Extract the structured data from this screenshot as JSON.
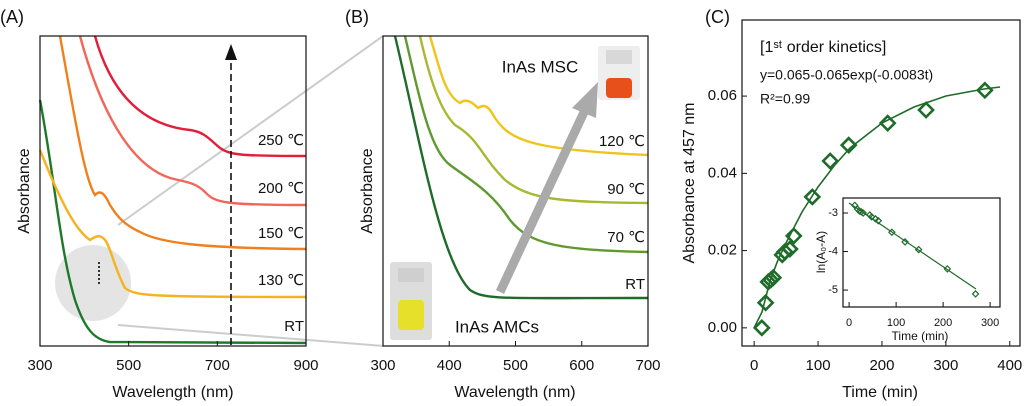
{
  "chart_data": [
    {
      "type": "line",
      "panel_label": "(A)",
      "x_label": "Wavelength (nm)",
      "y_label": "Absorbance",
      "xlim": [
        300,
        900
      ],
      "xticks": [
        300,
        500,
        700,
        900
      ],
      "curve_labels": [
        "250 ℃",
        "200 ℃",
        "150 ℃",
        "130 ℃",
        "RT"
      ]
    },
    {
      "type": "line",
      "panel_label": "(B)",
      "x_label": "Wavelength (nm)",
      "y_label": "Absorbance",
      "xlim": [
        300,
        700
      ],
      "xticks": [
        300,
        400,
        500,
        600,
        700
      ],
      "curve_labels": [
        "120 ℃",
        "90 ℃",
        "70 ℃",
        "RT"
      ],
      "annotations": [
        "InAs MSC",
        "InAs AMCs"
      ]
    },
    {
      "type": "scatter",
      "panel_label": "(C)",
      "x_label": "Time (min)",
      "y_label": "Absorbance at 457 nm",
      "annotations": [
        "[1ˢᵗ order kinetics]",
        "y=0.065-0.065exp(-0.0083t)",
        "R²=0.99"
      ],
      "x": [
        12,
        18,
        22,
        26,
        30,
        44,
        48,
        56,
        62,
        91,
        119,
        148,
        209,
        269,
        361
      ],
      "values": [
        0.0,
        0.0065,
        0.0119,
        0.0124,
        0.013,
        0.0189,
        0.0197,
        0.0204,
        0.0238,
        0.0339,
        0.0432,
        0.0473,
        0.053,
        0.0564,
        0.0615
      ],
      "color": "#1e6b2a",
      "xlim": [
        -19,
        416
      ],
      "ylim": [
        -0.0047,
        0.0797
      ],
      "xticks": [
        0,
        100,
        200,
        300,
        400
      ],
      "yticks": [
        {
          "value": 0,
          "label": "0.00"
        },
        {
          "value": 0.02,
          "label": "0.02"
        },
        {
          "value": 0.04,
          "label": "0.04"
        },
        {
          "value": 0.06,
          "label": "0.06"
        }
      ]
    },
    {
      "type": "scatter",
      "x_label": "Time (min)",
      "y_label": "ln(A₀-A)",
      "x": [
        12,
        18,
        22,
        26,
        30,
        44,
        48,
        56,
        62,
        91,
        119,
        148,
        209,
        269
      ],
      "values": [
        -2.8,
        -2.9,
        -2.95,
        -2.97,
        -3.0,
        -3.05,
        -3.1,
        -3.15,
        -3.2,
        -3.5,
        -3.75,
        -3.95,
        -4.45,
        -5.1
      ],
      "color": "#1e6b2a",
      "xlim": [
        -13,
        321
      ],
      "ylim": [
        -5.44,
        -2.61
      ],
      "xticks": [
        0,
        100,
        200,
        300
      ],
      "yticks": [
        -5,
        -4,
        -3
      ]
    }
  ]
}
